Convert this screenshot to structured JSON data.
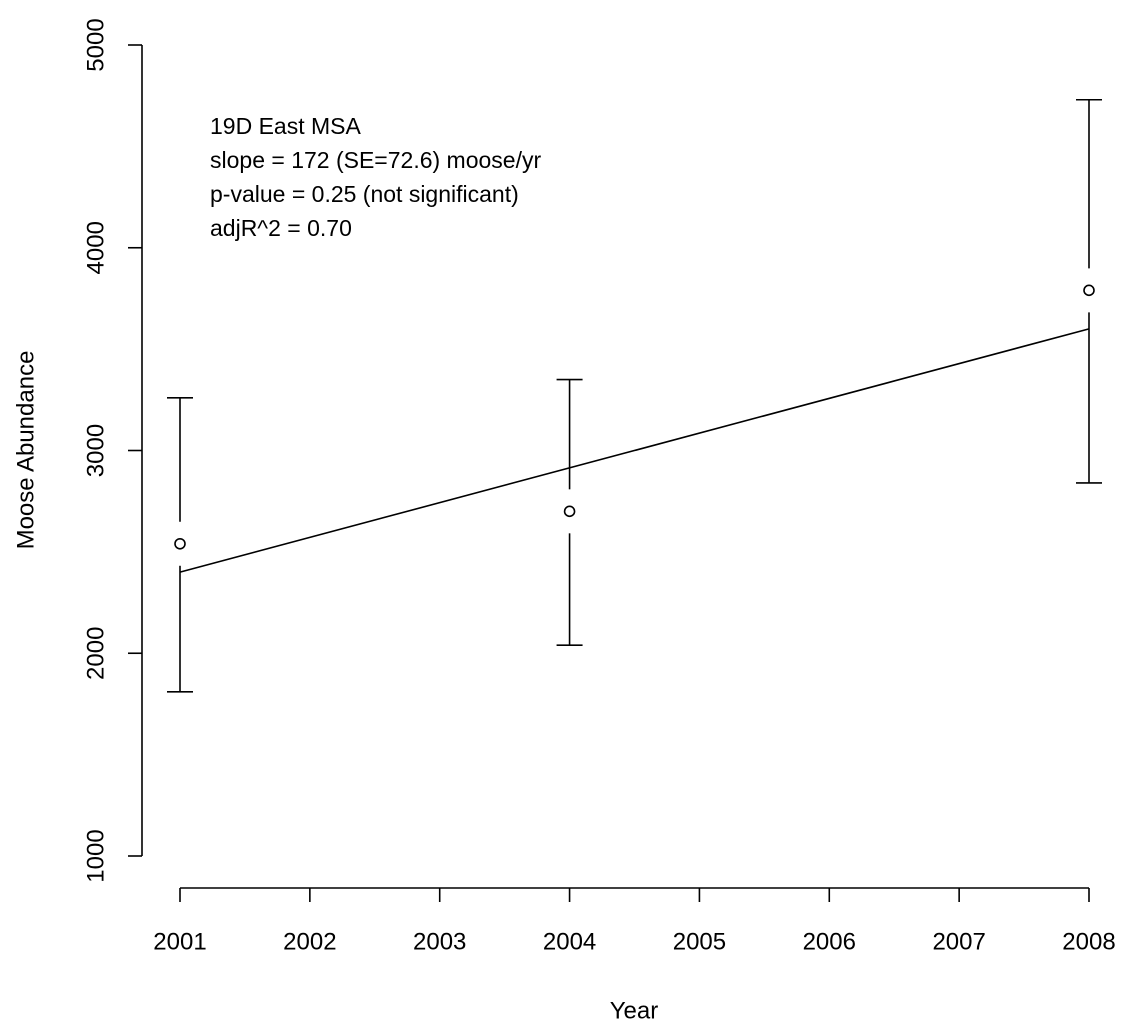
{
  "chart_data": {
    "type": "errorbar",
    "x_label": "Year",
    "y_label": "Moose Abundance",
    "annotations": [
      "19D East MSA",
      "slope = 172 (SE=72.6) moose/yr",
      "p-value = 0.25 (not significant)",
      "adjR^2 = 0.70"
    ],
    "x": [
      2001,
      2004,
      2008
    ],
    "values": [
      2540,
      2700,
      3790
    ],
    "lower": [
      1810,
      2040,
      2840
    ],
    "upper": [
      3260,
      3350,
      4730
    ],
    "fit": {
      "x": [
        2001,
        2008
      ],
      "values": [
        2400,
        3600
      ]
    },
    "color": "#000000",
    "xlim": [
      2001,
      2008
    ],
    "xticks": [
      2001,
      2002,
      2003,
      2004,
      2005,
      2006,
      2007,
      2008
    ],
    "ylim": [
      1000,
      5000
    ],
    "yticks": [
      1000,
      2000,
      3000,
      4000,
      5000
    ]
  }
}
